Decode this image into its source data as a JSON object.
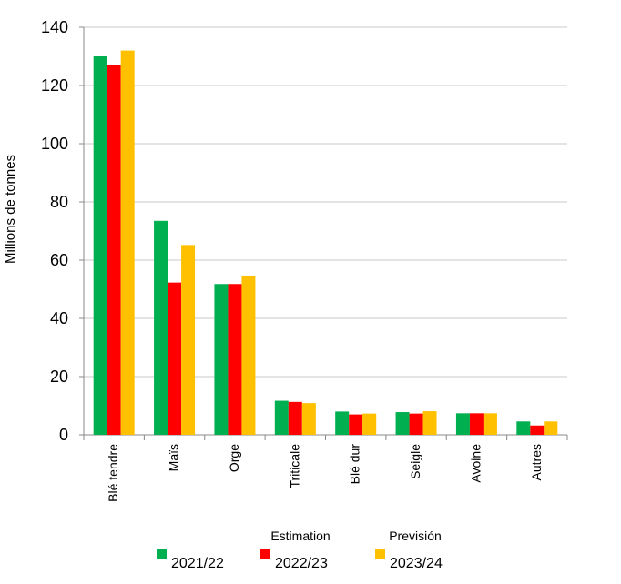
{
  "chart_data": {
    "type": "bar",
    "y_label": "Millions de tonnes",
    "categories": [
      "Blé tendre",
      "Maïs",
      "Orge",
      "Triticale",
      "Blé dur",
      "Seigle",
      "Avoine",
      "Autres"
    ],
    "series": [
      {
        "name": "2021/22",
        "color": "#00b050",
        "values": [
          130,
          73.5,
          51.8,
          11.7,
          8.0,
          7.8,
          7.4,
          4.6
        ]
      },
      {
        "name": "2022/23",
        "note": "Estimation",
        "color": "#ff0000",
        "values": [
          127,
          52.3,
          51.8,
          11.3,
          7.0,
          7.3,
          7.4,
          3.2
        ]
      },
      {
        "name": "2023/24",
        "note": "Previsión",
        "color": "#ffc000",
        "values": [
          132,
          65.2,
          54.7,
          10.9,
          7.3,
          8.1,
          7.4,
          4.6
        ]
      }
    ],
    "ylim": [
      0,
      140
    ],
    "yticks": [
      0,
      20,
      40,
      60,
      80,
      100,
      120,
      140
    ],
    "grid": true
  }
}
